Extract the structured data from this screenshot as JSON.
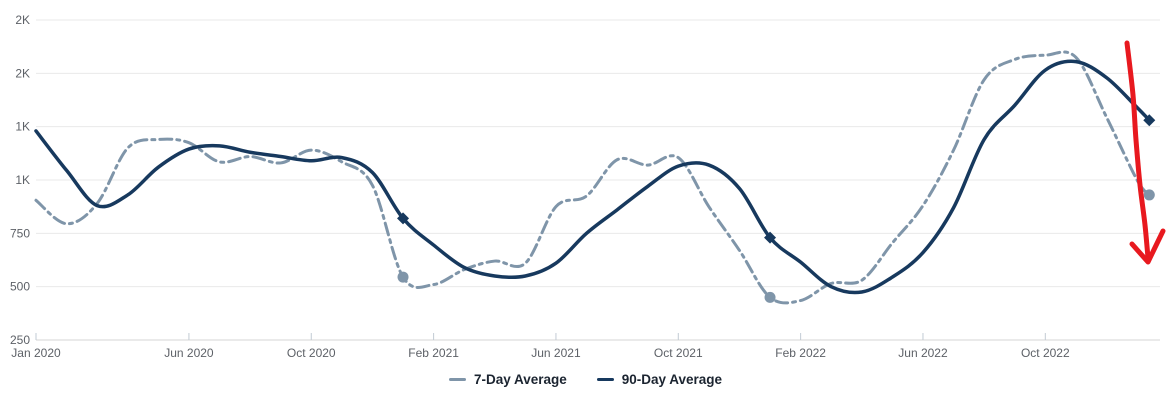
{
  "chart_data": {
    "type": "line",
    "title": "",
    "background": "#ffffff",
    "x_axis": {
      "unit": "months-since-jan-2020",
      "range": [
        0,
        36.75
      ],
      "ticks": [
        {
          "m": 0,
          "label": "Jan 2020"
        },
        {
          "m": 5,
          "label": "Jun 2020"
        },
        {
          "m": 9,
          "label": "Oct 2020"
        },
        {
          "m": 13,
          "label": "Feb 2021"
        },
        {
          "m": 17,
          "label": "Jun 2021"
        },
        {
          "m": 21,
          "label": "Oct 2021"
        },
        {
          "m": 25,
          "label": "Feb 2022"
        },
        {
          "m": 29,
          "label": "Jun 2022"
        },
        {
          "m": 33,
          "label": "Oct 2022"
        }
      ]
    },
    "y_axis": {
      "range": [
        250,
        1800
      ],
      "ticks": [
        {
          "value": 250,
          "label": "250"
        },
        {
          "value": 500,
          "label": "500"
        },
        {
          "value": 750,
          "label": "750"
        },
        {
          "value": 1000,
          "label": "1K"
        },
        {
          "value": 1250,
          "label": "1K"
        },
        {
          "value": 1500,
          "label": "2K"
        },
        {
          "value": 1750,
          "label": "2K"
        }
      ]
    },
    "series": [
      {
        "name": "7-Day Average",
        "key": "7-day-average",
        "style": "dashed",
        "color": "#7f95a9",
        "marker_shape": "circle",
        "points": [
          [
            0,
            905
          ],
          [
            1,
            795
          ],
          [
            2,
            890
          ],
          [
            3,
            1150
          ],
          [
            4,
            1190
          ],
          [
            5,
            1175
          ],
          [
            6,
            1085
          ],
          [
            7,
            1110
          ],
          [
            8,
            1080
          ],
          [
            9,
            1140
          ],
          [
            10,
            1085
          ],
          [
            11,
            975
          ],
          [
            12,
            545
          ],
          [
            13,
            510
          ],
          [
            14,
            580
          ],
          [
            15,
            620
          ],
          [
            16,
            610
          ],
          [
            17,
            875
          ],
          [
            18,
            925
          ],
          [
            19,
            1095
          ],
          [
            20,
            1070
          ],
          [
            21,
            1105
          ],
          [
            22,
            875
          ],
          [
            23,
            670
          ],
          [
            24,
            450
          ],
          [
            25,
            435
          ],
          [
            26,
            515
          ],
          [
            27,
            530
          ],
          [
            28,
            705
          ],
          [
            29,
            880
          ],
          [
            30,
            1140
          ],
          [
            31,
            1470
          ],
          [
            32,
            1565
          ],
          [
            33,
            1585
          ],
          [
            34,
            1575
          ],
          [
            35,
            1295
          ],
          [
            36,
            1000
          ],
          [
            36.4,
            930
          ]
        ],
        "markers": [
          [
            12,
            545
          ],
          [
            24,
            450
          ],
          [
            36.4,
            930
          ]
        ]
      },
      {
        "name": "90-Day Average",
        "key": "90-day-average",
        "style": "solid",
        "color": "#17395e",
        "marker_shape": "diamond",
        "points": [
          [
            0,
            1230
          ],
          [
            1,
            1045
          ],
          [
            2,
            880
          ],
          [
            3,
            930
          ],
          [
            4,
            1060
          ],
          [
            5,
            1145
          ],
          [
            6,
            1160
          ],
          [
            7,
            1130
          ],
          [
            8,
            1110
          ],
          [
            9,
            1090
          ],
          [
            10,
            1105
          ],
          [
            11,
            1035
          ],
          [
            12,
            820
          ],
          [
            13,
            695
          ],
          [
            14,
            590
          ],
          [
            15,
            550
          ],
          [
            16,
            550
          ],
          [
            17,
            610
          ],
          [
            18,
            750
          ],
          [
            19,
            860
          ],
          [
            20,
            970
          ],
          [
            21,
            1065
          ],
          [
            22,
            1070
          ],
          [
            23,
            960
          ],
          [
            24,
            730
          ],
          [
            25,
            615
          ],
          [
            26,
            500
          ],
          [
            27,
            475
          ],
          [
            28,
            545
          ],
          [
            29,
            660
          ],
          [
            30,
            870
          ],
          [
            31,
            1190
          ],
          [
            32,
            1350
          ],
          [
            33,
            1515
          ],
          [
            34,
            1555
          ],
          [
            35,
            1480
          ],
          [
            36,
            1340
          ],
          [
            36.4,
            1280
          ]
        ],
        "markers": [
          [
            12,
            820
          ],
          [
            24,
            730
          ],
          [
            36.4,
            1280
          ]
        ]
      }
    ],
    "annotations": [
      {
        "type": "arrow",
        "meaning": "hand-drawn highlight of sharp decline at right edge",
        "color": "#e8191f",
        "stroke_width": 5,
        "path": [
          [
            1127,
            43
          ],
          [
            1133,
            95
          ],
          [
            1136,
            140
          ],
          [
            1140,
            185
          ],
          [
            1145,
            225
          ],
          [
            1148,
            258
          ]
        ],
        "head": [
          [
            1132,
            244
          ],
          [
            1148,
            262
          ],
          [
            1163,
            231
          ]
        ]
      }
    ],
    "grid": {
      "horizontal": true,
      "vertical": false
    },
    "legend_position": "bottom-center"
  },
  "legend": {
    "items": [
      {
        "label": "7-Day Average",
        "color": "#7f95a9"
      },
      {
        "label": "90-Day Average",
        "color": "#17395e"
      }
    ]
  },
  "colors": {
    "grid_line": "#eaeaea",
    "axis_line": "#d6d6d6",
    "tick_mark": "#c2cbd4",
    "tick_text": "#5d6167",
    "legend_text": "#1b2430",
    "background": "#ffffff"
  }
}
